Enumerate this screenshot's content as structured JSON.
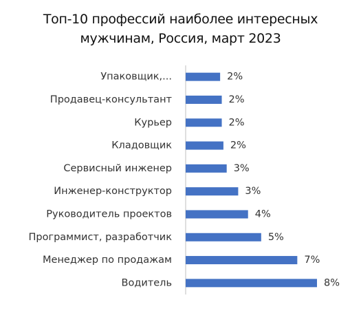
{
  "chart_data": {
    "type": "bar",
    "orientation": "horizontal",
    "title": "Топ-10 профессий наиболее интересных мужчинам, Россия, март 2023",
    "categories": [
      "Упаковщик,...",
      "Продавец-консультант",
      "Курьер",
      "Кладовщик",
      "Сервисный инженер",
      "Инженер-конструктор",
      "Руководитель проектов",
      "Программист, разработчик",
      "Менеджер по продажам",
      "Водитель"
    ],
    "values": [
      2.1,
      2.2,
      2.2,
      2.3,
      2.5,
      3.2,
      3.8,
      4.6,
      6.8,
      8.0
    ],
    "value_labels": [
      "2%",
      "2%",
      "2%",
      "2%",
      "3%",
      "3%",
      "4%",
      "5%",
      "7%",
      "8%"
    ],
    "color": "#4472c4"
  }
}
